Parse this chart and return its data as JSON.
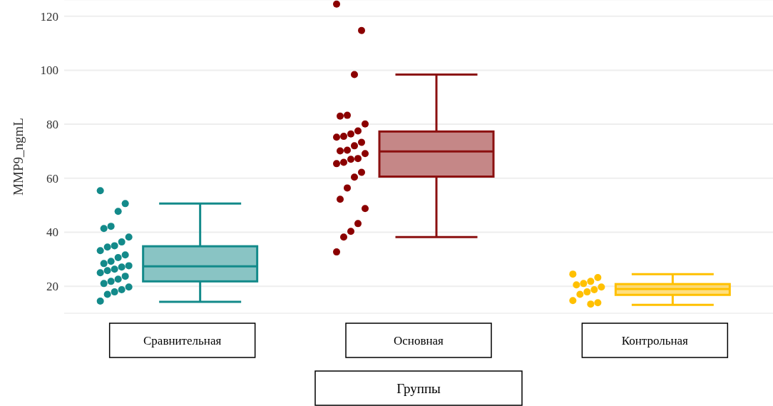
{
  "chart_data": {
    "type": "box",
    "xlabel": "Группы",
    "ylabel": "MMP9_ngmL",
    "categories": [
      "Сравнительная",
      "Основная",
      "Контрольная"
    ],
    "colors": [
      "#138a8a",
      "#8b1010",
      "#ffc000"
    ],
    "boxes": [
      {
        "low": 14.2,
        "q1": 21.8,
        "median": 27.4,
        "q3": 34.8,
        "high": 50.6
      },
      {
        "low": 38.2,
        "q1": 60.6,
        "median": 69.9,
        "q3": 77.3,
        "high": 98.4
      },
      {
        "low": 13.1,
        "q1": 16.8,
        "median": 19,
        "q3": 20.8,
        "high": 24.5
      }
    ],
    "series": [
      {
        "type": "scatter",
        "color": "#138a8a",
        "x": [
          "Сравнительная",
          "Сравнительная",
          "Сравнительная",
          "Сравнительная",
          "Сравнительная",
          "Сравнительная",
          "Сравнительная",
          "Сравнительная",
          "Сравнительная",
          "Сравнительная",
          "Сравнительная",
          "Сравнительная",
          "Сравнительная",
          "Сравнительная",
          "Сравнительная",
          "Сравнительная",
          "Сравнительная",
          "Сравнительная",
          "Сравнительная",
          "Сравнительная",
          "Сравнительная",
          "Сравнительная",
          "Сравнительная",
          "Сравнительная",
          "Сравнительная",
          "Сравнительная",
          "Сравнительная",
          "Сравнительная"
        ],
        "values": [
          55.4,
          50.6,
          47.7,
          42.2,
          41.4,
          38.2,
          36.4,
          35,
          34.5,
          33.2,
          31.6,
          30.6,
          29.2,
          28.4,
          27.6,
          27.1,
          26.3,
          25.8,
          25,
          23.7,
          22.6,
          21.8,
          21,
          19.7,
          18.7,
          17.9,
          17,
          14.5
        ]
      },
      {
        "type": "scatter",
        "color": "#8b0000",
        "x": [
          "Основная",
          "Основная",
          "Основная",
          "Основная",
          "Основная",
          "Основная",
          "Основная",
          "Основная",
          "Основная",
          "Основная",
          "Основная",
          "Основная",
          "Основная",
          "Основная",
          "Основная",
          "Основная",
          "Основная",
          "Основная",
          "Основная",
          "Основная",
          "Основная",
          "Основная",
          "Основная",
          "Основная",
          "Основная",
          "Основная",
          "Основная",
          "Основная"
        ],
        "values": [
          124.5,
          114.7,
          98.4,
          83.3,
          83,
          80.1,
          77.5,
          76.4,
          75.5,
          75.2,
          73.3,
          72,
          70.4,
          70.1,
          69.1,
          67.3,
          67,
          65.9,
          65.4,
          62.2,
          60.4,
          56.4,
          52.2,
          48.8,
          43.2,
          40.3,
          38.2,
          32.7
        ]
      },
      {
        "type": "scatter",
        "color": "#ffc000",
        "x": [
          "Контрольная",
          "Контрольная",
          "Контрольная",
          "Контрольная",
          "Контрольная",
          "Контрольная",
          "Контрольная",
          "Контрольная",
          "Контрольная",
          "Контрольная",
          "Контрольная",
          "Контрольная"
        ],
        "values": [
          24.5,
          23.2,
          21.8,
          21,
          20.5,
          19.7,
          18.7,
          17.9,
          17,
          14.7,
          13.9,
          13.4
        ]
      }
    ],
    "ylim": [
      10,
      126
    ],
    "yticks": [
      20,
      40,
      60,
      80,
      100,
      120
    ],
    "grid": "y"
  }
}
